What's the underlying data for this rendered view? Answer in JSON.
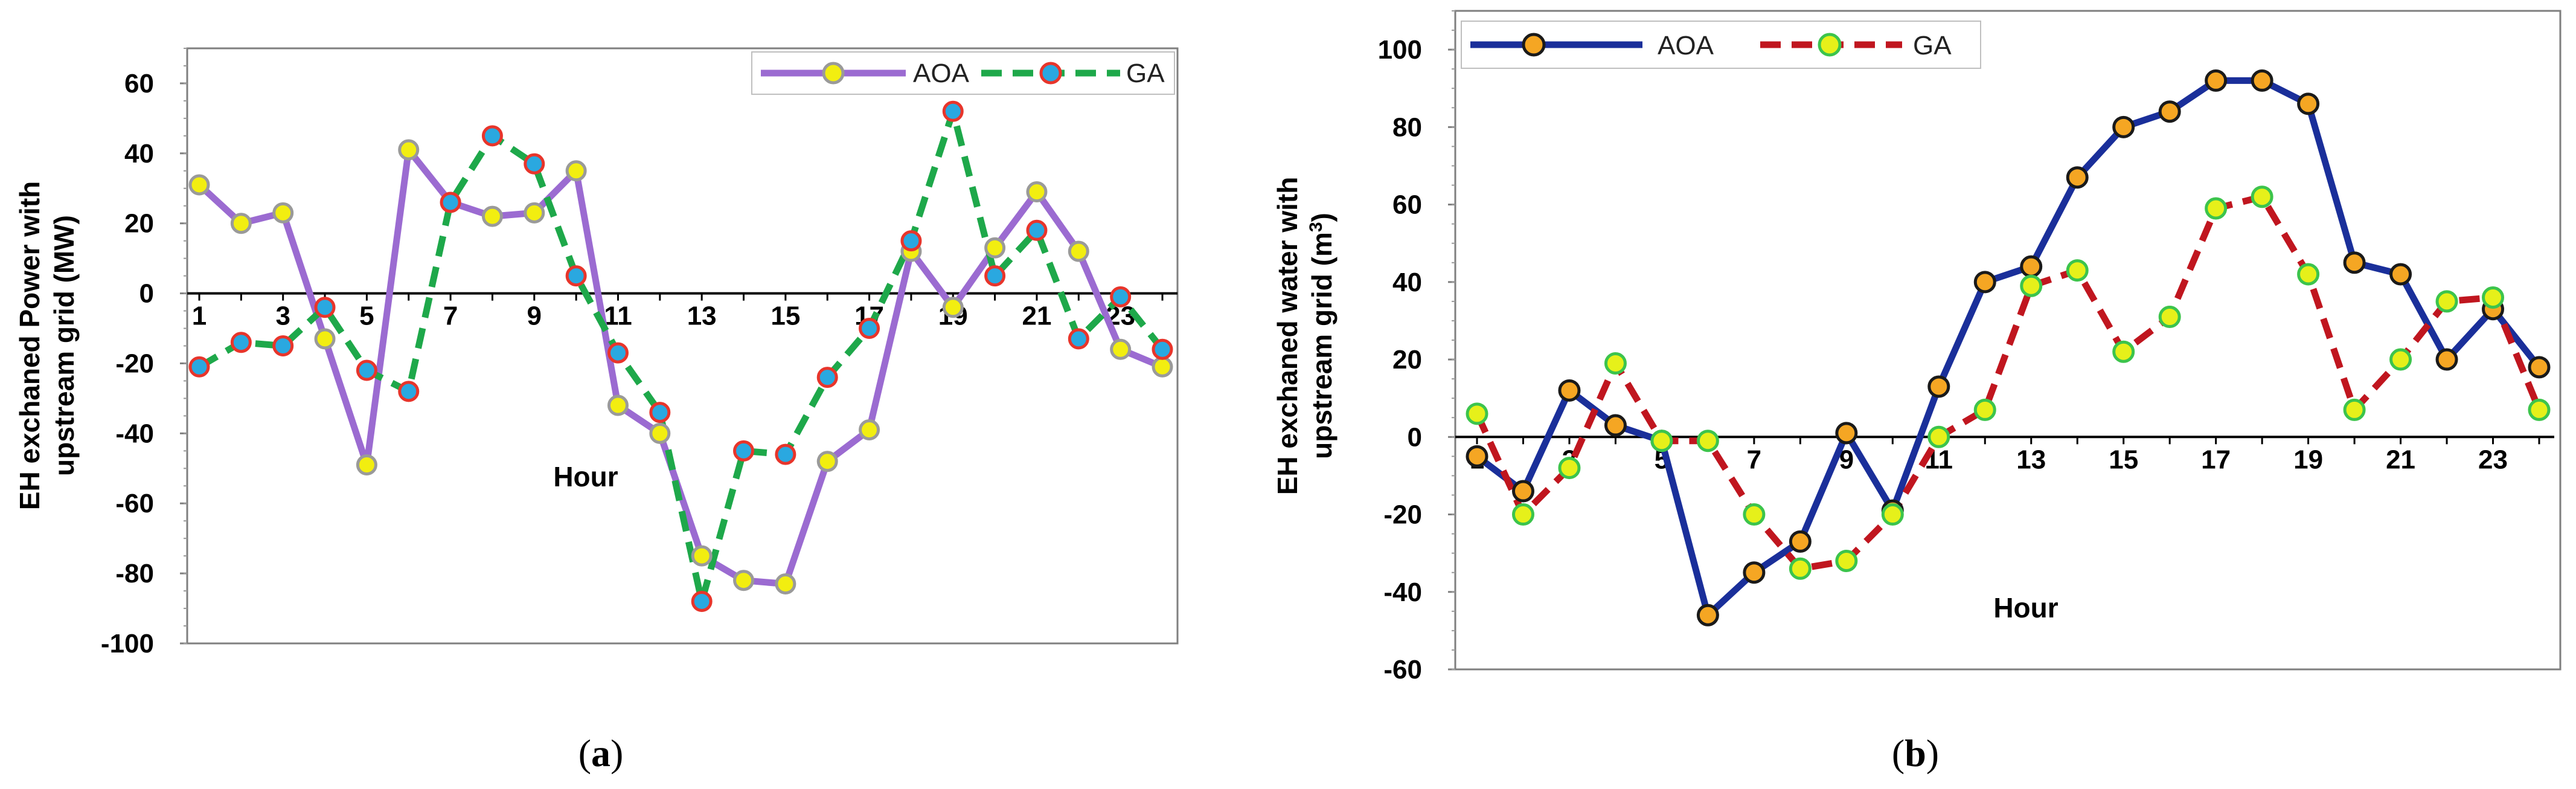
{
  "chart_data": [
    {
      "id": "a",
      "type": "line",
      "caption_open": "(",
      "caption_letter": "a",
      "caption_close": ")",
      "xlabel": "Hour",
      "ylabel_line1": "EH  exchaned Power with",
      "ylabel_line2": "upstream grid (MW)",
      "ylim": [
        -100,
        70
      ],
      "yticks": [
        -100,
        -80,
        -60,
        -40,
        -20,
        0,
        20,
        40,
        60
      ],
      "xticks": [
        1,
        3,
        5,
        7,
        9,
        11,
        13,
        15,
        17,
        19,
        21,
        23
      ],
      "x": [
        1,
        2,
        3,
        4,
        5,
        6,
        7,
        8,
        9,
        10,
        11,
        12,
        13,
        14,
        15,
        16,
        17,
        18,
        19,
        20,
        21,
        22,
        23,
        24
      ],
      "series": [
        {
          "name": "AOA",
          "color": "#9b6bd1",
          "marker_fill": "#f2ee10",
          "marker_stroke": "#9a9a9a",
          "dashed": false,
          "values": [
            31,
            20,
            23,
            -13,
            -49,
            41,
            26,
            22,
            23,
            35,
            -32,
            -40,
            -75,
            -82,
            -83,
            -48,
            -39,
            12,
            -4,
            13,
            29,
            12,
            -16,
            -21
          ]
        },
        {
          "name": "GA",
          "color": "#1ea84a",
          "marker_fill": "#2aa8e0",
          "marker_stroke": "#e8352b",
          "dashed": true,
          "values": [
            -21,
            -14,
            -15,
            -4,
            -22,
            -28,
            26,
            45,
            37,
            5,
            -17,
            -34,
            -88,
            -45,
            -46,
            -24,
            -10,
            15,
            52,
            5,
            18,
            -13,
            -1,
            -16
          ]
        }
      ]
    },
    {
      "id": "b",
      "type": "line",
      "caption_open": "(",
      "caption_letter": "b",
      "caption_close": ")",
      "xlabel": "Hour",
      "ylabel_line1": "EH  exchaned water with",
      "ylabel_line2_pre": "upstream grid (m",
      "ylabel_line2_sup": "3",
      "ylabel_line2_post": ")",
      "ylim": [
        -60,
        110
      ],
      "yticks": [
        -60,
        -40,
        -20,
        0,
        20,
        40,
        60,
        80,
        100
      ],
      "xticks": [
        1,
        3,
        5,
        7,
        9,
        11,
        13,
        15,
        17,
        19,
        21,
        23
      ],
      "x": [
        1,
        2,
        3,
        4,
        5,
        6,
        7,
        8,
        9,
        10,
        11,
        12,
        13,
        14,
        15,
        16,
        17,
        18,
        19,
        20,
        21,
        22,
        23,
        24
      ],
      "series": [
        {
          "name": "AOA",
          "color": "#1a2f9a",
          "marker_fill": "#f5a623",
          "marker_stroke": "#1a1a1a",
          "dashed": false,
          "values": [
            -5,
            -14,
            12,
            3,
            -1,
            -46,
            -35,
            -27,
            1,
            -19,
            13,
            40,
            44,
            67,
            80,
            84,
            92,
            92,
            86,
            45,
            42,
            20,
            33,
            18
          ]
        },
        {
          "name": "GA",
          "color": "#c0161f",
          "marker_fill": "#e6f01a",
          "marker_stroke": "#3cc44c",
          "dashed": true,
          "values": [
            6,
            -20,
            -8,
            19,
            -1,
            -1,
            -20,
            -34,
            -32,
            -20,
            0,
            7,
            39,
            43,
            22,
            31,
            59,
            62,
            42,
            7,
            20,
            35,
            36,
            7
          ]
        }
      ]
    }
  ]
}
